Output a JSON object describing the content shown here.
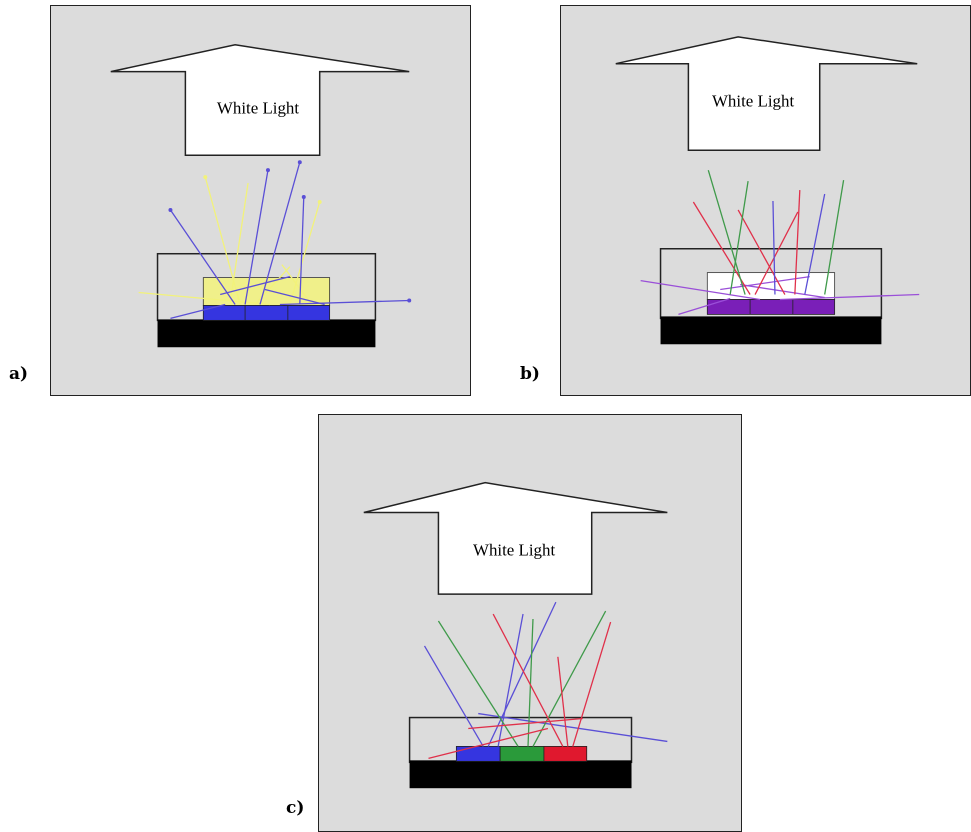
{
  "panels": [
    {
      "id": "a",
      "label": "a)",
      "arrow_text": "White Light",
      "emission": "blue LED with yellow phosphor"
    },
    {
      "id": "b",
      "label": "b)",
      "arrow_text": "White Light",
      "emission": "UV LED with RGB phosphor"
    },
    {
      "id": "c",
      "label": "c)",
      "arrow_text": "White Light",
      "emission": "red, green and blue LEDs"
    }
  ],
  "colors": {
    "background": "#dcdcdc",
    "blue_ray": "#5a4fd6",
    "yellow_ray": "#f2f27a",
    "red_ray": "#e0304a",
    "green_ray": "#3f9a4a",
    "violet_ray": "#9a4fd8",
    "phosphor_yellow": "#f0f08a",
    "led_blue": "#3535e0",
    "led_violet": "#7a1fb8",
    "led_green": "#2a9a3a",
    "led_red": "#e0182e",
    "substrate": "#000000"
  }
}
